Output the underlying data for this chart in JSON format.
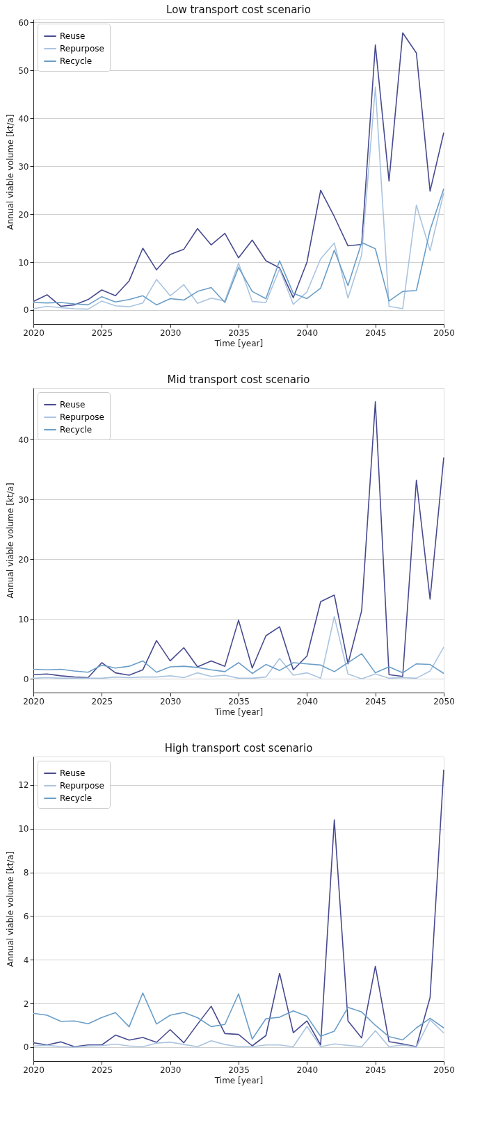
{
  "chart_data": [
    {
      "type": "line",
      "title": "Low transport cost scenario",
      "xlabel": "Time [year]",
      "ylabel": "Annual viable volume [kt/a]",
      "x": [
        2020,
        2021,
        2022,
        2023,
        2024,
        2025,
        2026,
        2027,
        2028,
        2029,
        2030,
        2031,
        2032,
        2033,
        2034,
        2035,
        2036,
        2037,
        2038,
        2039,
        2040,
        2041,
        2042,
        2043,
        2044,
        2045,
        2046,
        2047,
        2048,
        2049,
        2050
      ],
      "series": [
        {
          "name": "Reuse",
          "color": "#474a8f",
          "values": [
            1.8,
            3.2,
            0.8,
            1.1,
            2.2,
            4.2,
            3.0,
            6.1,
            12.9,
            8.4,
            11.6,
            12.7,
            17.0,
            13.6,
            16.0,
            10.9,
            14.6,
            10.3,
            8.8,
            2.6,
            10.0,
            25.0,
            19.5,
            13.4,
            13.7,
            55.3,
            26.9,
            57.8,
            53.6,
            24.8,
            37.0
          ]
        },
        {
          "name": "Repurpose",
          "color": "#aac4e0",
          "values": [
            0.3,
            0.8,
            0.5,
            0.3,
            0.2,
            1.9,
            0.9,
            0.7,
            1.5,
            6.4,
            3.0,
            5.3,
            1.4,
            2.5,
            1.9,
            9.8,
            1.8,
            1.6,
            8.6,
            1.2,
            3.8,
            10.7,
            14.0,
            2.5,
            11.5,
            46.5,
            0.8,
            0.3,
            21.9,
            12.4,
            24.5
          ]
        },
        {
          "name": "Recycle",
          "color": "#6a9ec8",
          "values": [
            1.6,
            1.5,
            1.6,
            1.3,
            1.1,
            2.8,
            1.7,
            2.2,
            3.0,
            1.1,
            2.4,
            2.1,
            3.9,
            4.7,
            1.6,
            8.9,
            3.9,
            2.4,
            10.3,
            3.5,
            2.4,
            4.6,
            12.5,
            5.1,
            14.1,
            12.8,
            1.9,
            3.9,
            4.1,
            16.7,
            25.3
          ]
        }
      ],
      "xlim": [
        2020,
        2050
      ],
      "xticks": [
        2020,
        2025,
        2030,
        2035,
        2040,
        2045,
        2050
      ],
      "ylim": [
        -2.9,
        60.6
      ],
      "yticks": [
        0,
        10,
        20,
        30,
        40,
        50,
        60
      ],
      "grid": "y",
      "legend": "top left",
      "line_style": "solid"
    },
    {
      "type": "line",
      "title": "Mid transport cost scenario",
      "xlabel": "Time [year]",
      "ylabel": "Annual viable volume [kt/a]",
      "x": [
        2020,
        2021,
        2022,
        2023,
        2024,
        2025,
        2026,
        2027,
        2028,
        2029,
        2030,
        2031,
        2032,
        2033,
        2034,
        2035,
        2036,
        2037,
        2038,
        2039,
        2040,
        2041,
        2042,
        2043,
        2044,
        2045,
        2046,
        2047,
        2048,
        2049,
        2050
      ],
      "series": [
        {
          "name": "Reuse",
          "color": "#474a8f",
          "values": [
            0.7,
            0.8,
            0.5,
            0.3,
            0.2,
            2.7,
            1.0,
            0.6,
            1.5,
            6.4,
            3.0,
            5.2,
            2.0,
            3.0,
            2.1,
            9.8,
            1.8,
            7.2,
            8.7,
            1.5,
            3.8,
            12.9,
            14.0,
            2.5,
            11.4,
            46.3,
            0.7,
            0.4,
            33.2,
            13.3,
            37.0
          ]
        },
        {
          "name": "Repurpose",
          "color": "#aac4e0",
          "values": [
            0.1,
            0.2,
            0.1,
            0.1,
            0.1,
            0.1,
            0.3,
            0.2,
            0.3,
            0.3,
            0.5,
            0.2,
            1.0,
            0.4,
            0.6,
            0.1,
            0.1,
            0.3,
            3.4,
            0.6,
            1.0,
            0.1,
            10.4,
            0.8,
            0.0,
            0.8,
            0.1,
            0.2,
            0.1,
            1.3,
            5.3
          ]
        },
        {
          "name": "Recycle",
          "color": "#6a9ec8",
          "values": [
            1.6,
            1.5,
            1.6,
            1.3,
            1.1,
            2.3,
            1.8,
            2.1,
            3.0,
            1.1,
            2.0,
            2.1,
            1.9,
            1.5,
            1.2,
            2.7,
            0.9,
            2.4,
            1.4,
            2.7,
            2.5,
            2.3,
            1.2,
            2.7,
            4.2,
            1.0,
            2.0,
            1.0,
            2.5,
            2.4,
            0.9
          ]
        }
      ],
      "xlim": [
        2020,
        2050
      ],
      "xticks": [
        2020,
        2025,
        2030,
        2035,
        2040,
        2045,
        2050
      ],
      "ylim": [
        -2.3,
        48.6
      ],
      "yticks": [
        0,
        10,
        20,
        30,
        40
      ],
      "grid": "y",
      "legend": "top left",
      "line_style": "solid"
    },
    {
      "type": "line",
      "title": "High transport cost scenario",
      "xlabel": "Time [year]",
      "ylabel": "Annual viable volume [kt/a]",
      "x": [
        2020,
        2021,
        2022,
        2023,
        2024,
        2025,
        2026,
        2027,
        2028,
        2029,
        2030,
        2031,
        2032,
        2033,
        2034,
        2035,
        2036,
        2037,
        2038,
        2039,
        2040,
        2041,
        2042,
        2043,
        2044,
        2045,
        2046,
        2047,
        2048,
        2049,
        2050
      ],
      "series": [
        {
          "name": "Reuse",
          "color": "#474a8f",
          "values": [
            0.2,
            0.1,
            0.24,
            0.02,
            0.1,
            0.1,
            0.55,
            0.32,
            0.44,
            0.22,
            0.8,
            0.2,
            1.05,
            1.87,
            0.62,
            0.58,
            0.06,
            0.53,
            3.38,
            0.66,
            1.2,
            0.1,
            10.4,
            1.2,
            0.42,
            3.7,
            0.25,
            0.15,
            0.02,
            2.27,
            12.7
          ]
        },
        {
          "name": "Repurpose",
          "color": "#aac4e0",
          "values": [
            0.05,
            0.08,
            0.03,
            0.0,
            0.05,
            0.07,
            0.14,
            0.05,
            0.02,
            0.18,
            0.23,
            0.12,
            0.02,
            0.29,
            0.12,
            0.02,
            0.02,
            0.1,
            0.1,
            0.02,
            0.95,
            0.02,
            0.15,
            0.08,
            0.02,
            0.75,
            0.02,
            0.1,
            0.0,
            1.25,
            0.65
          ]
        },
        {
          "name": "Recycle",
          "color": "#6a9ec8",
          "values": [
            1.55,
            1.46,
            1.18,
            1.2,
            1.07,
            1.36,
            1.58,
            0.93,
            2.48,
            1.06,
            1.46,
            1.59,
            1.35,
            0.94,
            1.04,
            2.44,
            0.37,
            1.3,
            1.37,
            1.66,
            1.41,
            0.5,
            0.73,
            1.82,
            1.61,
            1.0,
            0.48,
            0.33,
            0.88,
            1.32,
            0.88
          ]
        }
      ],
      "xlim": [
        2020,
        2050
      ],
      "xticks": [
        2020,
        2025,
        2030,
        2035,
        2040,
        2045,
        2050
      ],
      "ylim": [
        -0.64,
        13.3
      ],
      "yticks": [
        0,
        2,
        4,
        6,
        8,
        10,
        12
      ],
      "grid": "y",
      "legend": "top left",
      "line_style": "solid"
    }
  ]
}
